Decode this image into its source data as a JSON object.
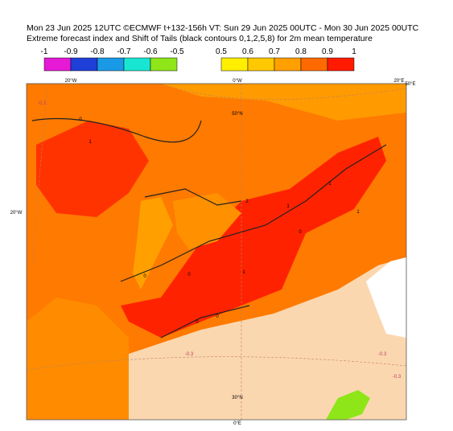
{
  "header": {
    "lines": [
      "Mon 23 Jun 2025 12UTC ©ECMWF t+132-156h  VT: Sun 29 Jun 2025 00UTC - Mon 30 Jun 2025 00UTC",
      "Extreme forecast index and Shift of Tails (black contours 0,1,2,5,8) for 2m mean temperature"
    ]
  },
  "legend": {
    "negative": {
      "labels": [
        -1,
        -0.9,
        -0.8,
        -0.7,
        -0.6,
        -0.5
      ],
      "colors": [
        "#e619d6",
        "#1f3fd9",
        "#1a9ae6",
        "#19e6d2",
        "#8ee619"
      ]
    },
    "positive": {
      "labels": [
        0.5,
        0.6,
        0.7,
        0.8,
        0.9,
        1
      ],
      "colors": [
        "#ffee00",
        "#ffc800",
        "#ffa000",
        "#ff6a00",
        "#ff1a00"
      ]
    }
  },
  "map": {
    "grid_labels": [
      "20°W",
      "0°W",
      "20°E",
      "50°N",
      "20°W",
      "30°N",
      "0°E",
      "50°E"
    ],
    "contour_labels": [
      "0",
      "1",
      "1",
      "0",
      "2",
      "1",
      "1",
      "0",
      "0",
      "0",
      "1",
      "0"
    ],
    "dashed_labels": [
      "-0.3",
      "-0.3",
      "-0.3",
      "-0.3"
    ]
  }
}
